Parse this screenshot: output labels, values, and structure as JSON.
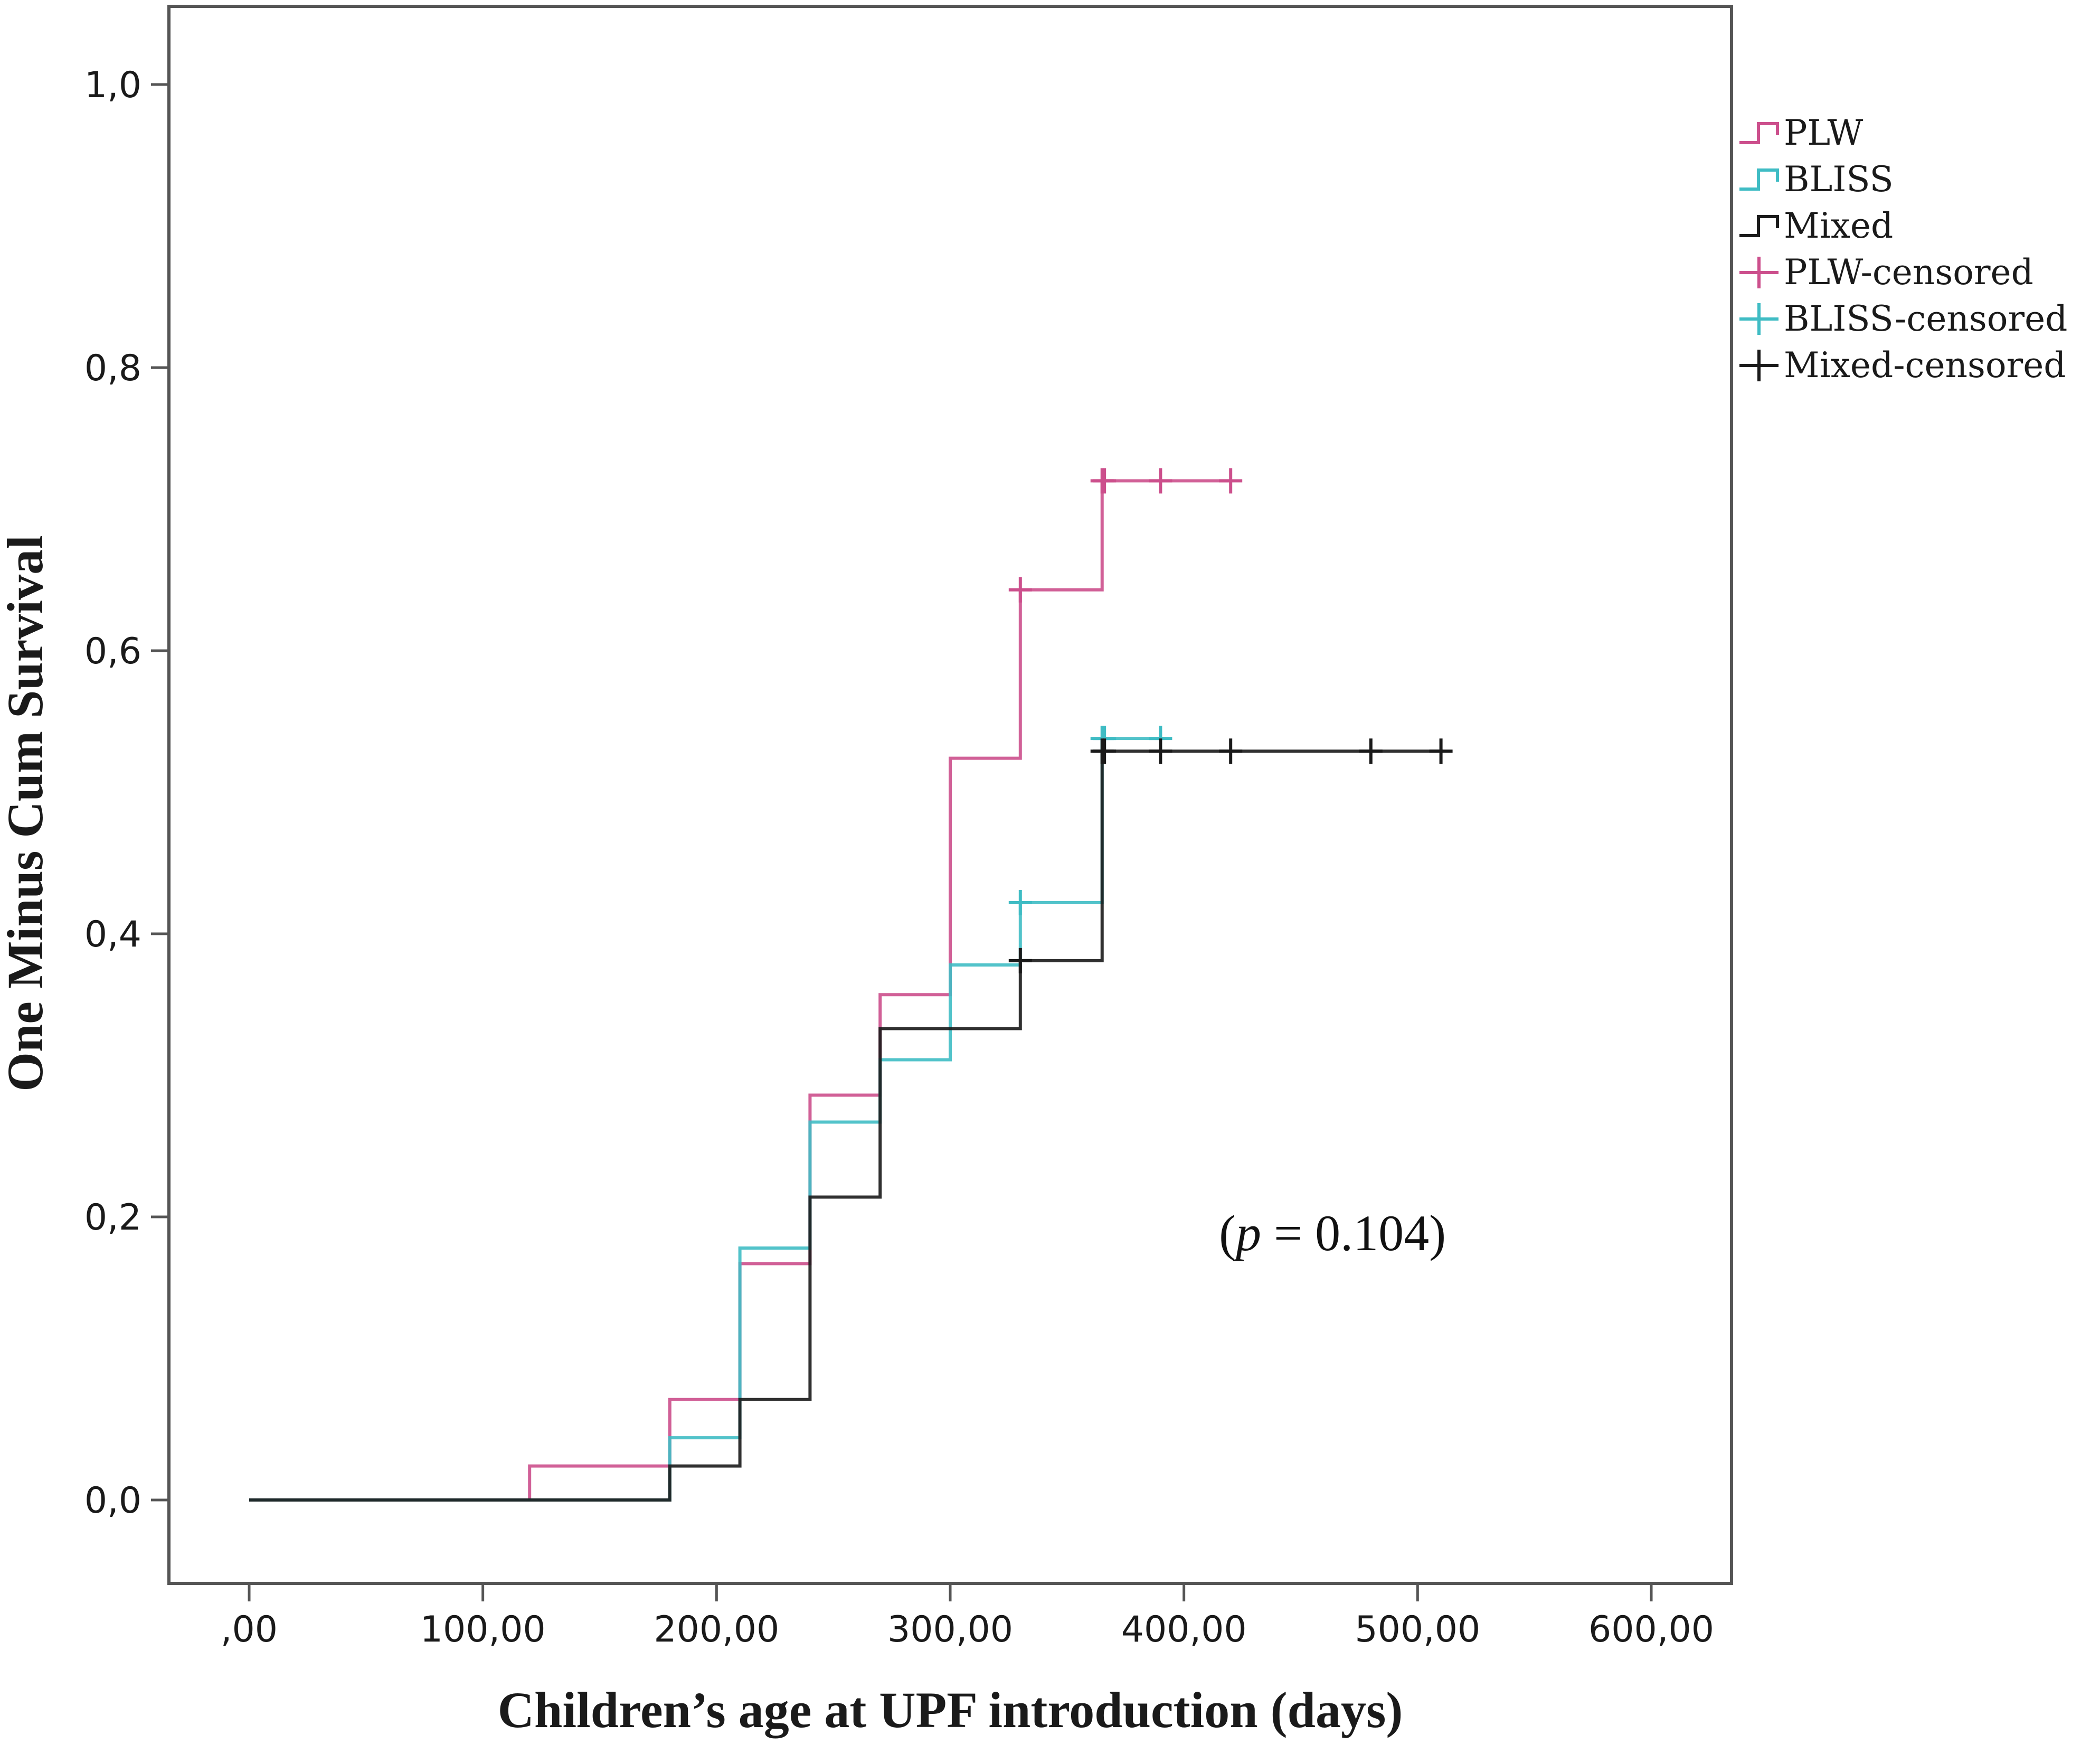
{
  "chart_data": {
    "type": "line",
    "subtype": "kaplan-meier step (one minus cumulative survival)",
    "title": "",
    "xlabel": "Children’s age at UPF introduction (days)",
    "ylabel": "One Minus Cum Survival",
    "xlim": [
      -35,
      635
    ],
    "ylim": [
      -0.07,
      1.06
    ],
    "x_ticks": [
      0,
      100,
      200,
      300,
      400,
      500,
      600
    ],
    "x_tick_labels": [
      ",00",
      "100,00",
      "200,00",
      "300,00",
      "400,00",
      "500,00",
      "600,00"
    ],
    "y_ticks": [
      0.0,
      0.2,
      0.4,
      0.6,
      0.8,
      1.0
    ],
    "y_tick_labels": [
      "0,0",
      "0,2",
      "0,4",
      "0,6",
      "0,8",
      "1,0"
    ],
    "grid": false,
    "legend_position": "right",
    "annotation": {
      "prefix": "(",
      "italic": "p",
      "rest": " = 0.104)",
      "x": 415,
      "y": 0.19
    },
    "series": [
      {
        "name": "PLW",
        "censored_name": "PLW-censored",
        "color": "#cc4f8c",
        "steps": [
          [
            0,
            0.0
          ],
          [
            120,
            0.024
          ],
          [
            180,
            0.071
          ],
          [
            210,
            0.167
          ],
          [
            240,
            0.286
          ],
          [
            270,
            0.357
          ],
          [
            300,
            0.524
          ],
          [
            330,
            0.643
          ],
          [
            365,
            0.72
          ]
        ],
        "end_x": 420,
        "censored": [
          [
            330,
            0.643
          ],
          [
            365,
            0.72
          ],
          [
            366,
            0.72
          ],
          [
            390,
            0.72
          ],
          [
            420,
            0.72
          ]
        ]
      },
      {
        "name": "BLISS",
        "censored_name": "BLISS-censored",
        "color": "#3fbcc4",
        "steps": [
          [
            0,
            0.0
          ],
          [
            180,
            0.044
          ],
          [
            210,
            0.178
          ],
          [
            240,
            0.267
          ],
          [
            270,
            0.311
          ],
          [
            300,
            0.378
          ],
          [
            330,
            0.422
          ],
          [
            365,
            0.538
          ]
        ],
        "end_x": 392,
        "censored": [
          [
            330,
            0.422
          ],
          [
            365,
            0.538
          ],
          [
            366,
            0.538
          ],
          [
            390,
            0.538
          ]
        ]
      },
      {
        "name": "Mixed",
        "censored_name": "Mixed-censored",
        "color": "#1a1a1a",
        "steps": [
          [
            0,
            0.0
          ],
          [
            180,
            0.024
          ],
          [
            210,
            0.071
          ],
          [
            240,
            0.214
          ],
          [
            270,
            0.333
          ],
          [
            330,
            0.381
          ],
          [
            365,
            0.529
          ]
        ],
        "end_x": 511,
        "censored": [
          [
            330,
            0.381
          ],
          [
            365,
            0.529
          ],
          [
            366,
            0.529
          ],
          [
            390,
            0.529
          ],
          [
            420,
            0.529
          ],
          [
            480,
            0.529
          ],
          [
            510,
            0.529
          ]
        ]
      }
    ]
  }
}
